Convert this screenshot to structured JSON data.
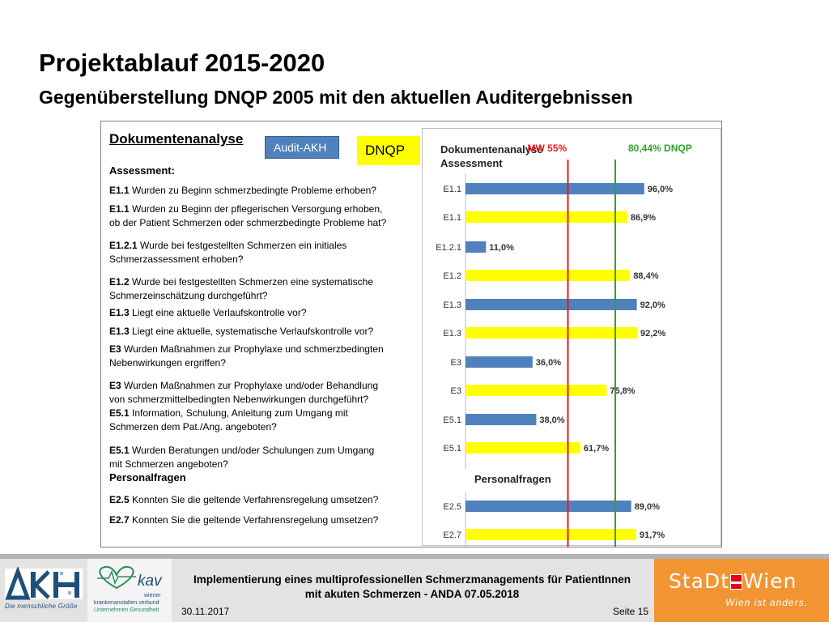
{
  "slide": {
    "title": "Projektablauf 2015-2020",
    "subtitle": "Gegenüberstellung DNQP 2005 mit den aktuellen Auditergebnissen"
  },
  "left": {
    "heading": "Dokumentenanalyse",
    "assessment_label": "Assessment:",
    "personal_label": "Personalfragen",
    "legend_akh": "Audit-AKH",
    "legend_dnqp": "DNQP",
    "questions": [
      {
        "code": "E1.1",
        "line1": "Wurden zu Beginn schmerzbedingte Probleme erhoben?",
        "line2": ""
      },
      {
        "code": "E1.1",
        "line1": "Wurden zu Beginn der pflegerischen Versorgung erhoben,",
        "line2": "ob der Patient Schmerzen oder schmerzbedingte Probleme hat?"
      },
      {
        "code": "E1.2.1",
        "line1": "Wurde bei festgestellten Schmerzen ein initiales",
        "line2": "Schmerzassessment erhoben?"
      },
      {
        "code": "E1.2",
        "line1": "Wurde bei festgestellten Schmerzen eine systematische",
        "line2": "Schmerzeinschätzung durchgeführt?"
      },
      {
        "code": "E1.3",
        "line1": "Liegt eine aktuelle Verlaufskontrolle vor?",
        "line2": ""
      },
      {
        "code": "E1.3",
        "line1": "Liegt eine aktuelle, systematische Verlaufskontrolle vor?",
        "line2": ""
      },
      {
        "code": "E3",
        "line1": "Wurden Maßnahmen zur Prophylaxe und schmerzbedingten",
        "line2": "Nebenwirkungen  ergriffen?"
      },
      {
        "code": "E3",
        "line1": "Wurden Maßnahmen zur Prophylaxe und/oder  Behandlung",
        "line2": "von schmerzmittelbedingten Nebenwirkungen  durchgeführt?"
      },
      {
        "code": "E5.1",
        "line1": "Information, Schulung, Anleitung zum Umgang mit",
        "line2": "Schmerzen dem Pat./Ang. angeboten?"
      },
      {
        "code": "E5.1",
        "line1": "Wurden Beratungen  und/oder  Schulungen zum Umgang",
        "line2": "mit Schmerzen angeboten?"
      },
      {
        "code": "E2.5",
        "line1": "Konnten Sie die geltende Verfahrensregelung umsetzen?",
        "line2": ""
      },
      {
        "code": "E2.7",
        "line1": "Konnten Sie die geltende Verfahrensregelung  umsetzen?",
        "line2": ""
      }
    ]
  },
  "chart_data": {
    "type": "bar",
    "orientation": "horizontal",
    "title_line1": "Dokumentenanalyse",
    "title_line2": "Assessment",
    "section2_title": "Personalfragen",
    "xlim": [
      0,
      100
    ],
    "categories": [
      "E1.1",
      "E1.1",
      "E1.2.1",
      "E1.2",
      "E1.3",
      "E1.3",
      "E3",
      "E3",
      "E5.1",
      "E5.1",
      "E2.5",
      "E2.7"
    ],
    "values": [
      96.0,
      86.9,
      11.0,
      88.4,
      92.0,
      92.2,
      36.0,
      75.8,
      38.0,
      61.7,
      89.0,
      91.7
    ],
    "labels": [
      "96,0%",
      "86,9%",
      "11,0%",
      "88,4%",
      "92,0%",
      "92,2%",
      "36,0%",
      "75,8%",
      "38,0%",
      "61,7%",
      "89,0%",
      "91,7%"
    ],
    "series_of_bar": [
      "Audit-AKH",
      "DNQP",
      "Audit-AKH",
      "DNQP",
      "Audit-AKH",
      "DNQP",
      "Audit-AKH",
      "DNQP",
      "Audit-AKH",
      "DNQP",
      "Audit-AKH",
      "DNQP"
    ],
    "colors": {
      "Audit-AKH": "#4f81bd",
      "DNQP": "#ffff00",
      "mean": "#e31a1c",
      "dnqp_line": "#33a02c"
    },
    "reference_lines": [
      {
        "label": "MW 55%",
        "value": 55,
        "color": "#e31a1c"
      },
      {
        "label": "80,44% DNQP",
        "value": 80.44,
        "color": "#33a02c"
      }
    ]
  },
  "footer": {
    "title_line1": "Implementierung eines multiprofessionellen Schmerzmanagements für PatientInnen",
    "title_line2": "mit akuten Schmerzen - ANDA 07.05.2018",
    "date": "30.11.2017",
    "page": "Seite 15",
    "akh_tagline": "Die menschliche Größe",
    "kav_logo": "kav",
    "kav_line1": "wiener",
    "kav_line2": "krankenanstalten verbund",
    "kav_line3": "Unternehmen Gesundheit",
    "wien_logo_left": "StaDt",
    "wien_logo_right": "Wien",
    "wien_tagline": "Wien ist anders."
  }
}
